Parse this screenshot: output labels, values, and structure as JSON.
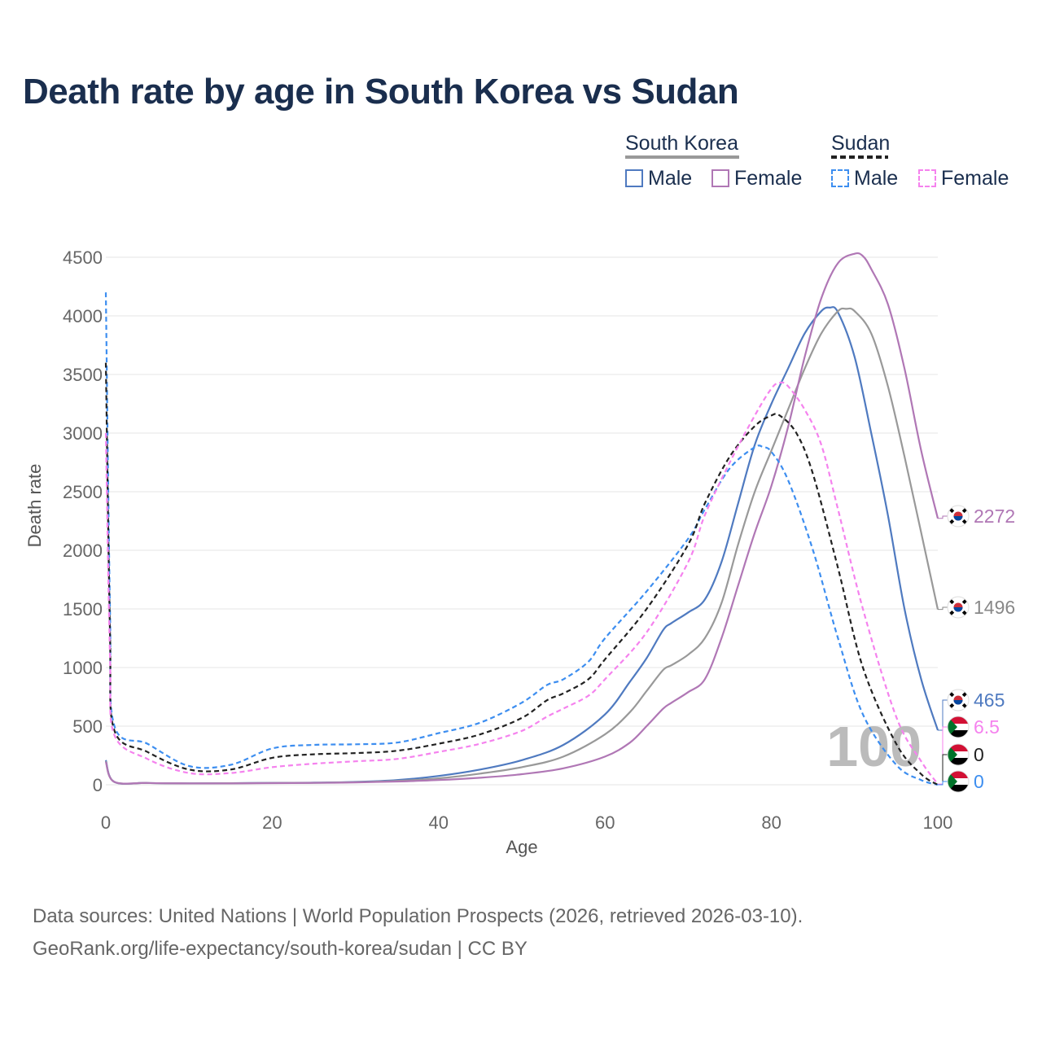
{
  "title": "Death rate by age in South Korea vs Sudan",
  "legend": {
    "groups": [
      {
        "name": "South Korea",
        "line_color": "#999999",
        "line_style": "solid",
        "items": [
          {
            "label": "Male",
            "color": "#4f7ac0",
            "style": "solid"
          },
          {
            "label": "Female",
            "color": "#b077b5",
            "style": "solid"
          }
        ]
      },
      {
        "name": "Sudan",
        "line_color": "#222222",
        "line_style": "dashed",
        "items": [
          {
            "label": "Male",
            "color": "#3d8ef0",
            "style": "dashed"
          },
          {
            "label": "Female",
            "color": "#f582ee",
            "style": "dashed"
          }
        ]
      }
    ]
  },
  "watermark_year": "100",
  "end_labels": [
    {
      "series": "South Korea Female",
      "label": "2272",
      "flag": "south-korea",
      "color": "#b077b5"
    },
    {
      "series": "South Korea Total",
      "label": "1496",
      "flag": "south-korea",
      "color": "#888888"
    },
    {
      "series": "South Korea Male",
      "label": "465",
      "flag": "south-korea",
      "color": "#4f7ac0"
    },
    {
      "series": "Sudan Female",
      "label": "6.5",
      "flag": "sudan",
      "color": "#f582ee"
    },
    {
      "series": "Sudan Total",
      "label": "0",
      "flag": "sudan",
      "color": "#222222"
    },
    {
      "series": "Sudan Male",
      "label": "0",
      "flag": "sudan",
      "color": "#3d8ef0"
    }
  ],
  "source": {
    "line1": "Data sources: United Nations | World Population Prospects (2026, retrieved 2026-03-10).",
    "line2": "GeoRank.org/life-expectancy/south-korea/sudan | CC BY"
  },
  "chart_data": {
    "type": "line",
    "title": "Death rate by age in South Korea vs Sudan",
    "xlabel": "Age",
    "ylabel": "Death rate",
    "xlim": [
      0,
      100
    ],
    "ylim": [
      0,
      4500
    ],
    "xticks": [
      0,
      20,
      40,
      60,
      80,
      100
    ],
    "yticks": [
      0,
      500,
      1000,
      1500,
      2000,
      2500,
      3000,
      3500,
      4000,
      4500
    ],
    "grid": true,
    "series": [
      {
        "name": "South Korea Male",
        "color": "#4f7ac0",
        "dash": "solid",
        "x": [
          0,
          1,
          5,
          10,
          15,
          20,
          25,
          30,
          35,
          40,
          45,
          50,
          55,
          60,
          63,
          65,
          67,
          68,
          70,
          72,
          74,
          76,
          78,
          80,
          82,
          84,
          86,
          87,
          88,
          90,
          92,
          94,
          96,
          98,
          100
        ],
        "y": [
          210,
          25,
          15,
          12,
          13,
          16,
          18,
          24,
          40,
          75,
          130,
          210,
          340,
          600,
          880,
          1080,
          1320,
          1380,
          1470,
          1580,
          1900,
          2400,
          2900,
          3250,
          3550,
          3850,
          4040,
          4070,
          4030,
          3650,
          3000,
          2300,
          1500,
          900,
          465
        ]
      },
      {
        "name": "South Korea Total",
        "color": "#999999",
        "dash": "solid",
        "x": [
          0,
          1,
          5,
          10,
          15,
          20,
          25,
          30,
          35,
          40,
          45,
          50,
          55,
          60,
          63,
          65,
          67,
          68,
          70,
          72,
          74,
          76,
          78,
          80,
          82,
          84,
          86,
          88,
          89,
          90,
          92,
          94,
          96,
          98,
          100
        ],
        "y": [
          200,
          25,
          15,
          12,
          13,
          15,
          17,
          22,
          33,
          55,
          95,
          150,
          240,
          430,
          620,
          800,
          980,
          1020,
          1110,
          1250,
          1550,
          2050,
          2500,
          2850,
          3200,
          3550,
          3850,
          4040,
          4060,
          4040,
          3850,
          3400,
          2800,
          2150,
          1496
        ]
      },
      {
        "name": "South Korea Female",
        "color": "#b077b5",
        "dash": "solid",
        "x": [
          0,
          1,
          5,
          10,
          15,
          20,
          25,
          30,
          35,
          40,
          45,
          50,
          55,
          60,
          63,
          65,
          67,
          68,
          70,
          72,
          74,
          76,
          78,
          80,
          82,
          84,
          86,
          88,
          90,
          91,
          92,
          94,
          96,
          98,
          100
        ],
        "y": [
          195,
          25,
          15,
          12,
          12,
          14,
          16,
          20,
          28,
          40,
          60,
          90,
          140,
          240,
          360,
          500,
          650,
          700,
          790,
          900,
          1250,
          1700,
          2150,
          2550,
          3050,
          3650,
          4150,
          4450,
          4530,
          4510,
          4400,
          4100,
          3550,
          2850,
          2272
        ]
      },
      {
        "name": "Sudan Male",
        "color": "#3d8ef0",
        "dash": "dashed",
        "x": [
          0,
          0.5,
          1,
          5,
          10,
          15,
          20,
          25,
          30,
          35,
          40,
          45,
          50,
          53,
          55,
          58,
          60,
          65,
          70,
          72,
          75,
          78,
          79,
          80,
          82,
          85,
          88,
          91,
          95,
          98,
          100
        ],
        "y": [
          4200,
          1500,
          510,
          350,
          160,
          170,
          310,
          340,
          345,
          360,
          440,
          530,
          700,
          850,
          900,
          1050,
          1250,
          1650,
          2100,
          2350,
          2700,
          2880,
          2880,
          2840,
          2600,
          2000,
          1250,
          600,
          170,
          40,
          0
        ]
      },
      {
        "name": "Sudan Total",
        "color": "#222222",
        "dash": "dashed",
        "x": [
          0,
          0.5,
          1,
          5,
          10,
          15,
          20,
          25,
          30,
          35,
          40,
          45,
          50,
          53,
          55,
          58,
          60,
          65,
          70,
          72,
          75,
          78,
          80,
          81,
          83,
          85,
          88,
          91,
          95,
          98,
          100
        ],
        "y": [
          3600,
          1300,
          470,
          280,
          130,
          130,
          230,
          260,
          270,
          290,
          350,
          430,
          570,
          720,
          780,
          900,
          1070,
          1500,
          2050,
          2400,
          2800,
          3060,
          3150,
          3150,
          3000,
          2650,
          1850,
          1000,
          350,
          90,
          0
        ]
      },
      {
        "name": "Sudan Female",
        "color": "#f582ee",
        "dash": "dashed",
        "x": [
          0,
          0.5,
          1,
          5,
          10,
          15,
          20,
          25,
          30,
          35,
          40,
          45,
          50,
          53,
          55,
          58,
          60,
          65,
          70,
          72,
          75,
          78,
          80,
          81,
          82,
          84,
          86,
          88,
          91,
          95,
          98,
          100
        ],
        "y": [
          3000,
          1100,
          430,
          220,
          100,
          100,
          150,
          180,
          200,
          220,
          280,
          350,
          460,
          580,
          650,
          760,
          900,
          1300,
          1900,
          2300,
          2750,
          3150,
          3380,
          3430,
          3400,
          3200,
          2900,
          2350,
          1500,
          580,
          200,
          6.5
        ]
      }
    ]
  }
}
